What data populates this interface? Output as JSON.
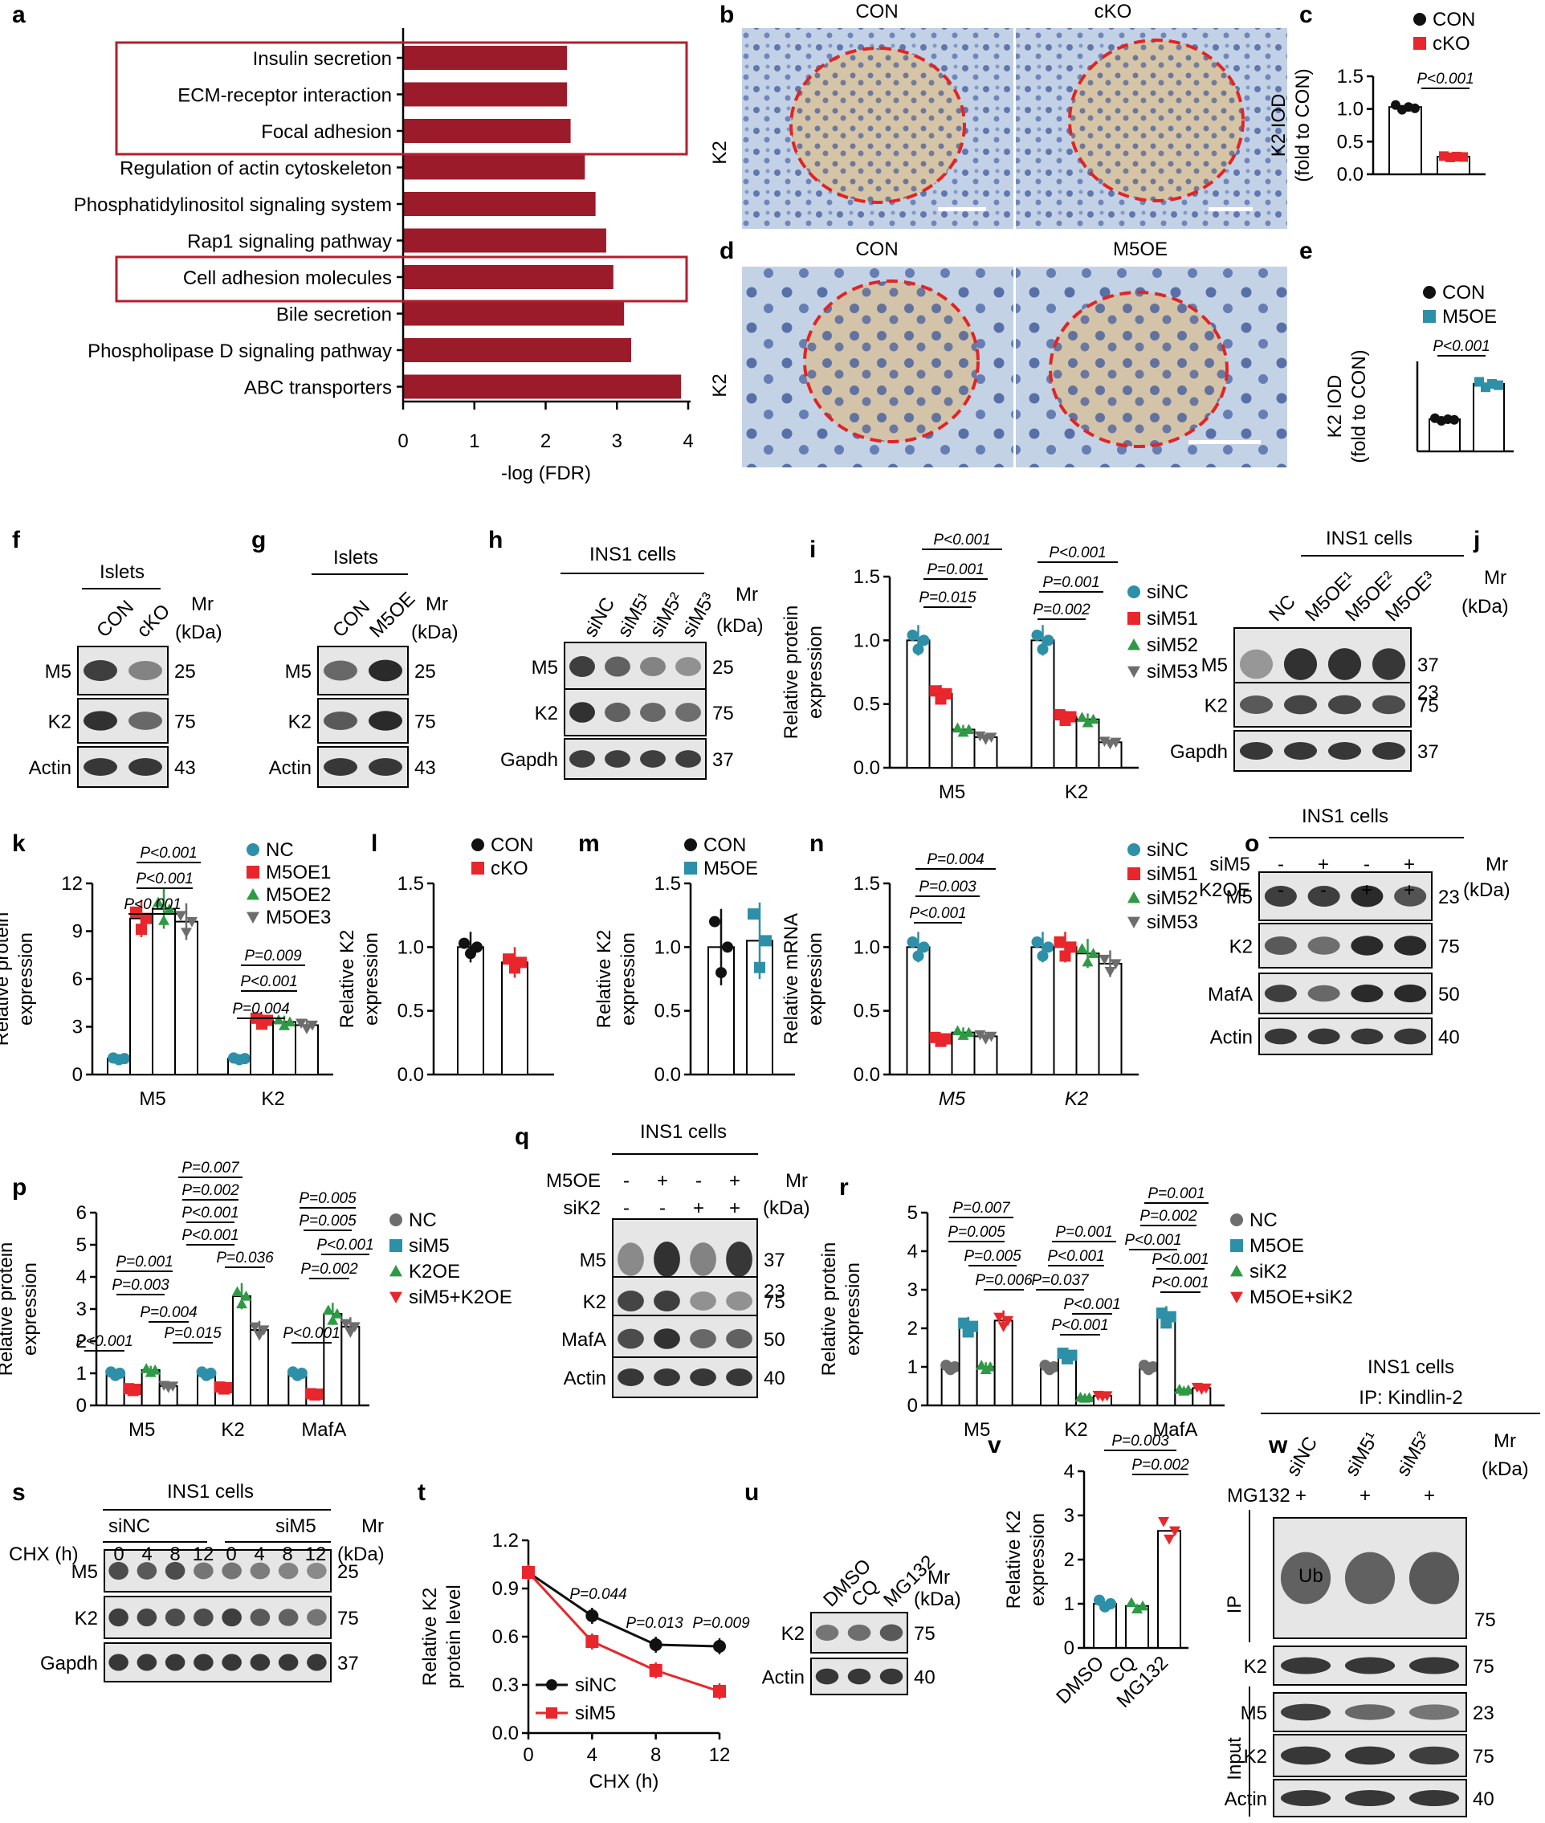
{
  "panels": {
    "a": "a",
    "b": "b",
    "c": "c",
    "d": "d",
    "e": "e",
    "f": "f",
    "g": "g",
    "h": "h",
    "i": "i",
    "j": "j",
    "k": "k",
    "l": "l",
    "m": "m",
    "n": "n",
    "o": "o",
    "p": "p",
    "q": "q",
    "r": "r",
    "s": "s",
    "t": "t",
    "u": "u",
    "v": "v",
    "w": "w"
  },
  "colors": {
    "dark_red": "#9b1b2b",
    "red": "#e8262b",
    "teal": "#2e8fa8",
    "green": "#2e9a45",
    "gray": "#6d6d6d",
    "black": "#111111",
    "ihc_bg": "#c5d3e6"
  },
  "chart_data": [
    {
      "panel": "a",
      "type": "bar",
      "orientation": "horizontal",
      "categories": [
        "Insulin secretion",
        "ECM-receptor interaction",
        "Focal adhesion",
        "Regulation of actin cytoskeleton",
        "Phosphatidylinositol signaling system",
        "Rap1 signaling pathway",
        "Cell adhesion molecules",
        "Bile secretion",
        "Phospholipase D signaling pathway",
        "ABC transporters"
      ],
      "values": [
        2.3,
        2.3,
        2.35,
        2.55,
        2.7,
        2.85,
        2.95,
        3.1,
        3.2,
        3.9
      ],
      "xlabel": "-log (FDR)",
      "xlim": [
        0,
        4
      ],
      "xticks": [
        "0",
        "1",
        "2",
        "3",
        "4"
      ],
      "highlight_boxes": [
        [
          0,
          2
        ],
        [
          6,
          6
        ]
      ]
    },
    {
      "panel": "c",
      "type": "bar",
      "ylabel_lines": [
        "K2 IOD",
        "(fold to CON)"
      ],
      "yticks": [
        "0.0",
        "0.5",
        "1.0",
        "1.5"
      ],
      "ylim": [
        0,
        1.5
      ],
      "series": [
        {
          "name": "CON",
          "value": 1.03
        },
        {
          "name": "cKO",
          "value": 0.27
        }
      ],
      "annotations": [
        "P<0.001"
      ]
    },
    {
      "panel": "e",
      "type": "bar",
      "ylabel_lines": [
        "K2 IOD",
        "(fold to CON)"
      ],
      "yticks": [],
      "ylim": [
        0,
        2.8
      ],
      "series": [
        {
          "name": "CON",
          "value": 1.0
        },
        {
          "name": "M5OE",
          "value": 2.1
        }
      ],
      "annotations": [
        "P<0.001"
      ]
    },
    {
      "panel": "i",
      "type": "bar",
      "ylabel": "Relative protein expression",
      "yticks": [
        "0.0",
        "0.5",
        "1.0",
        "1.5"
      ],
      "ylim": [
        0,
        1.5
      ],
      "categories": [
        "M5",
        "K2"
      ],
      "series": [
        {
          "name": "siNC",
          "values": [
            1.0,
            1.0
          ]
        },
        {
          "name": "siM5 1",
          "values": [
            0.58,
            0.4
          ]
        },
        {
          "name": "siM5 2",
          "values": [
            0.3,
            0.38
          ]
        },
        {
          "name": "siM5 3",
          "values": [
            0.24,
            0.2
          ]
        }
      ],
      "annotations": [
        "P<0.001",
        "P=0.001",
        "P=0.015",
        "P<0.001",
        "P=0.001",
        "P=0.002"
      ]
    },
    {
      "panel": "k",
      "type": "bar",
      "ylabel": "Relative protein expression",
      "yticks": [
        "0",
        "3",
        "6",
        "9",
        "12"
      ],
      "ylim": [
        0,
        12
      ],
      "categories": [
        "M5",
        "K2"
      ],
      "series": [
        {
          "name": "NC",
          "values": [
            1.0,
            1.0
          ]
        },
        {
          "name": "M5OE 1",
          "values": [
            9.8,
            3.4
          ]
        },
        {
          "name": "M5OE 2",
          "values": [
            10.4,
            3.3
          ]
        },
        {
          "name": "M5OE 3",
          "values": [
            9.6,
            3.1
          ]
        }
      ],
      "annotations": [
        "P<0.001",
        "P<0.001",
        "P<0.001",
        "P=0.009",
        "P<0.001",
        "P=0.004"
      ]
    },
    {
      "panel": "l",
      "type": "bar",
      "ylabel": "Relative K2 expression",
      "yticks": [
        "0.0",
        "0.5",
        "1.0",
        "1.5"
      ],
      "ylim": [
        0,
        1.5
      ],
      "series": [
        {
          "name": "CON",
          "value": 1.0
        },
        {
          "name": "cKO",
          "value": 0.88
        }
      ]
    },
    {
      "panel": "m",
      "type": "bar",
      "ylabel": "Relative K2 expression",
      "yticks": [
        "0.0",
        "0.5",
        "1.0",
        "1.5"
      ],
      "ylim": [
        0,
        1.5
      ],
      "series": [
        {
          "name": "CON",
          "value": 1.0
        },
        {
          "name": "M5OE",
          "value": 1.05
        }
      ]
    },
    {
      "panel": "n",
      "type": "bar",
      "ylabel": "Relative mRNA expression",
      "yticks": [
        "0.0",
        "0.5",
        "1.0",
        "1.5"
      ],
      "ylim": [
        0,
        1.5
      ],
      "categories": [
        "M5",
        "K2"
      ],
      "series": [
        {
          "name": "siNC",
          "values": [
            1.0,
            1.0
          ]
        },
        {
          "name": "siM5 1",
          "values": [
            0.28,
            1.0
          ]
        },
        {
          "name": "siM5 2",
          "values": [
            0.33,
            0.95
          ]
        },
        {
          "name": "siM5 3",
          "values": [
            0.3,
            0.87
          ]
        }
      ],
      "annotations": [
        "P=0.004",
        "P=0.003",
        "P<0.001"
      ]
    },
    {
      "panel": "p",
      "type": "bar",
      "ylabel": "Relative protein expression",
      "yticks": [
        "0",
        "1",
        "2",
        "3",
        "4",
        "5",
        "6"
      ],
      "ylim": [
        0,
        6
      ],
      "categories": [
        "M5",
        "K2",
        "MafA"
      ],
      "series": [
        {
          "name": "NC",
          "values": [
            1.0,
            1.0,
            1.0
          ]
        },
        {
          "name": "siM5",
          "values": [
            0.5,
            0.55,
            0.35
          ]
        },
        {
          "name": "K2OE",
          "values": [
            1.1,
            3.4,
            2.85
          ]
        },
        {
          "name": "siM5+K2OE",
          "values": [
            0.6,
            2.35,
            2.45
          ]
        }
      ],
      "annotations": [
        "P=0.001",
        "P=0.003",
        "P=0.004",
        "P<0.001",
        "P=0.007",
        "P=0.002",
        "P<0.001",
        "P<0.001",
        "P=0.036",
        "P=0.015",
        "P=0.005",
        "P=0.005",
        "P<0.001",
        "P=0.002",
        "P<0.001"
      ]
    },
    {
      "panel": "r",
      "type": "bar",
      "ylabel": "Relative protein expression",
      "yticks": [
        "0",
        "1",
        "2",
        "3",
        "4",
        "5"
      ],
      "ylim": [
        0,
        5
      ],
      "categories": [
        "M5",
        "K2",
        "MafA"
      ],
      "series": [
        {
          "name": "NC",
          "values": [
            1.0,
            1.0,
            1.0
          ]
        },
        {
          "name": "M5OE",
          "values": [
            2.05,
            1.3,
            2.3
          ]
        },
        {
          "name": "siK2",
          "values": [
            1.0,
            0.2,
            0.4
          ]
        },
        {
          "name": "M5OE+siK2",
          "values": [
            2.2,
            0.25,
            0.45
          ]
        }
      ],
      "annotations": [
        "P=0.007",
        "P=0.005",
        "P=0.005",
        "P=0.006",
        "P=0.001",
        "P<0.001",
        "P=0.037",
        "P<0.001",
        "P<0.001",
        "P=0.001",
        "P=0.002",
        "P<0.001",
        "P<0.001",
        "P<0.001"
      ]
    },
    {
      "panel": "t",
      "type": "line",
      "xlabel": "CHX (h)",
      "ylabel": "Relative K2 protein level",
      "x": [
        0,
        4,
        8,
        12
      ],
      "xticks": [
        "0",
        "4",
        "8",
        "12"
      ],
      "yticks": [
        "0.0",
        "0.3",
        "0.6",
        "0.9",
        "1.2"
      ],
      "ylim": [
        0,
        1.2
      ],
      "series": [
        {
          "name": "siNC",
          "values": [
            1.0,
            0.73,
            0.55,
            0.54
          ]
        },
        {
          "name": "siM5",
          "values": [
            1.0,
            0.57,
            0.39,
            0.26
          ]
        }
      ],
      "annotations": [
        "P=0.044",
        "P=0.013",
        "P=0.009"
      ]
    },
    {
      "panel": "v",
      "type": "bar",
      "ylabel": "Relative K2 expression",
      "yticks": [
        "0",
        "1",
        "2",
        "3",
        "4"
      ],
      "ylim": [
        0,
        4
      ],
      "categories": [
        "DMSO",
        "CQ",
        "MG132"
      ],
      "values": [
        1.0,
        0.95,
        2.65
      ],
      "annotations": [
        "P=0.003",
        "P=0.002"
      ]
    }
  ],
  "text": {
    "b_con": "CON",
    "b_cko": "cKO",
    "k2": "K2",
    "d_con": "CON",
    "d_m5oe": "M5OE",
    "islets": "Islets",
    "ins1": "INS1 cells",
    "mr": "Mr",
    "kda": "(kDa)",
    "con": "CON",
    "cko": "cKO",
    "m5oe": "M5OE",
    "m5": "M5",
    "actin": "Actin",
    "gapdh": "Gapdh",
    "mafa": "MafA",
    "sinc": "siNC",
    "sim5": "siM5",
    "sik2": "siK2",
    "k2oe": "K2OE",
    "nc": "NC",
    "chx": "CHX (h)",
    "mw25": "25",
    "mw75": "75",
    "mw43": "43",
    "mw37": "37",
    "mw23": "23",
    "mw50": "50",
    "mw40": "40",
    "dmso": "DMSO",
    "cq": "CQ",
    "mg132": "MG132",
    "ip_kindlin": "IP: Kindlin-2",
    "ub": "Ub",
    "ip": "IP",
    "input": "Input",
    "plus": "+",
    "minus": "-"
  }
}
